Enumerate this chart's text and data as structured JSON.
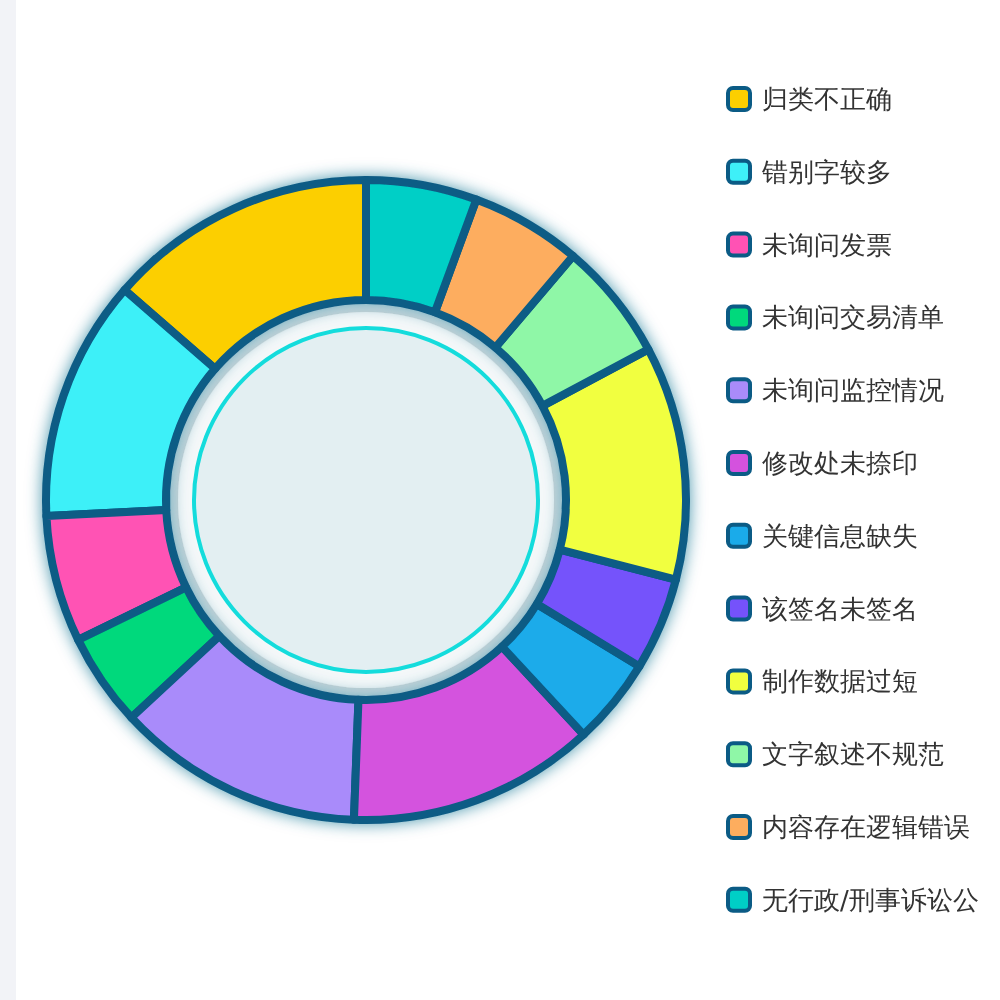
{
  "chart_data": {
    "type": "donut",
    "categories": [
      "归类不正确",
      "错别字较多",
      "未询问发票",
      "未询问交易清单",
      "未询问监控情况",
      "修改处未捺印",
      "关键信息缺失",
      "该签名未签名",
      "制作数据过短",
      "文字叙述不规范",
      "内容存在逻辑错误",
      "无行政/刑事诉讼公"
    ],
    "values": [
      13.6,
      12.2,
      6.4,
      4.7,
      12.5,
      12.5,
      4.4,
      4.7,
      11.8,
      6.0,
      5.6,
      5.6
    ],
    "colors": [
      "#fccf00",
      "#3ef0f8",
      "#ff52b4",
      "#00d97c",
      "#a98bfa",
      "#d452de",
      "#1aabea",
      "#7552fb",
      "#f1ff3f",
      "#8ff7a7",
      "#fdad5e",
      "#00cfc6"
    ],
    "legend": "right"
  }
}
